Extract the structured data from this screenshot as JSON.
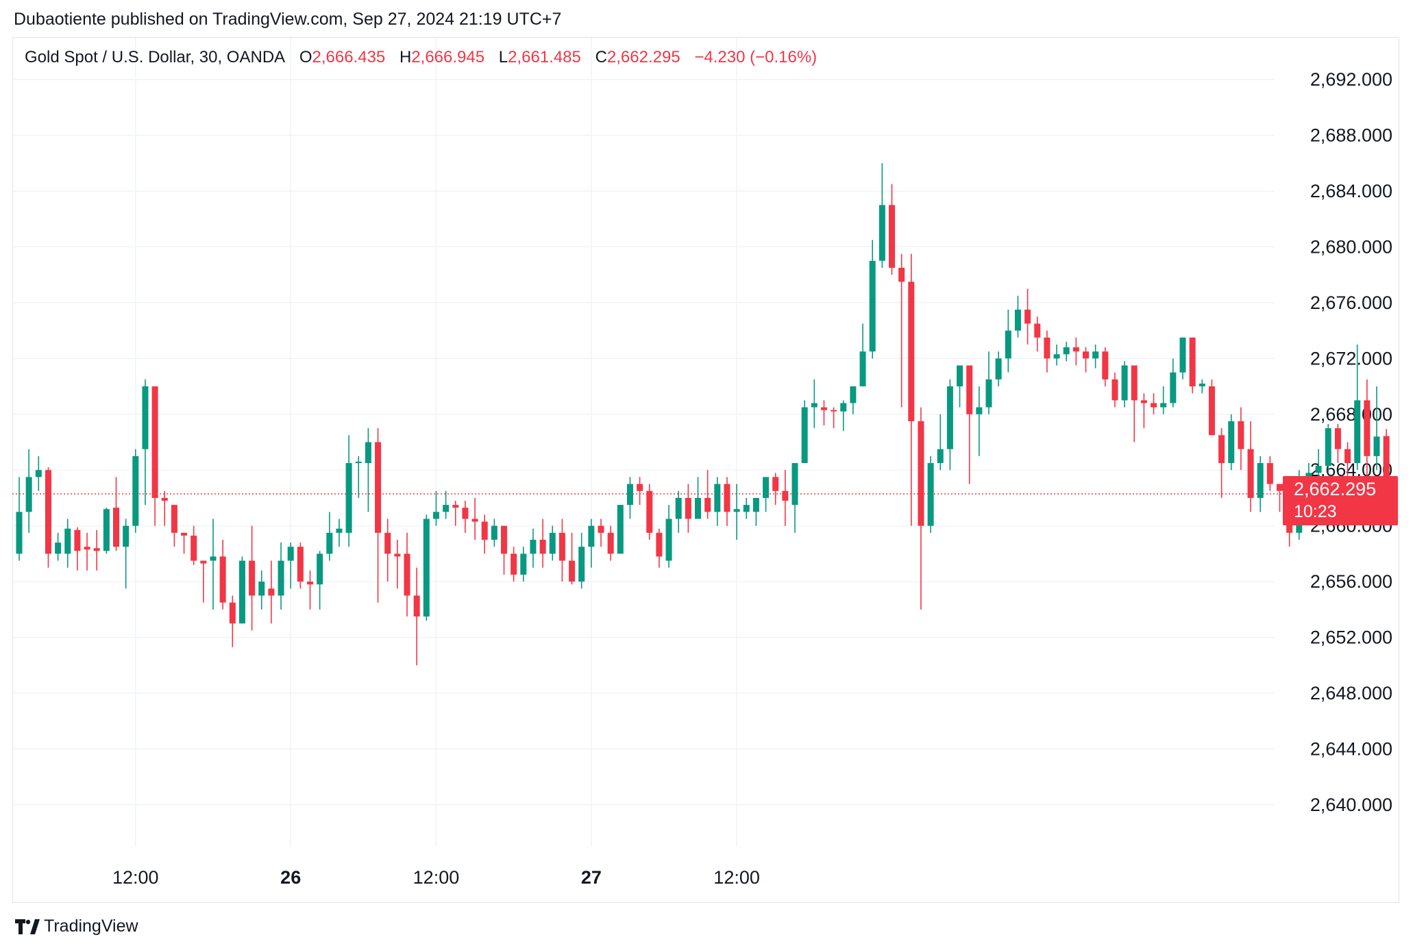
{
  "header": {
    "publisher_line": "Dubaotiente published on TradingView.com, Sep 27, 2024 21:19 UTC+7"
  },
  "legend": {
    "symbol": "Gold Spot / U.S. Dollar, 30, OANDA",
    "open_label": "O",
    "open": "2,666.435",
    "high_label": "H",
    "high": "2,666.945",
    "low_label": "L",
    "low": "2,661.485",
    "close_label": "C",
    "close": "2,662.295",
    "change": "−4.230 (−0.16%)"
  },
  "last_price": {
    "value": "2,662.295",
    "countdown": "10:23"
  },
  "footer": {
    "brand": "TradingView",
    "logo_icon": "tradingview-logo-icon"
  },
  "colors": {
    "up": "#089981",
    "down": "#f23645",
    "grid": "#f0f3fa",
    "text": "#131722"
  },
  "chart_data": {
    "type": "candlestick",
    "interval": "30",
    "y_ticks": [
      "2,692.000",
      "2,688.000",
      "2,684.000",
      "2,680.000",
      "2,676.000",
      "2,672.000",
      "2,668.000",
      "2,664.000",
      "2,660.000",
      "2,656.000",
      "2,652.000",
      "2,648.000",
      "2,644.000",
      "2,640.000"
    ],
    "ylim": [
      2637,
      2695
    ],
    "x_labels": [
      {
        "label": "12:00",
        "index": 12,
        "bold": false
      },
      {
        "label": "26",
        "index": 28,
        "bold": true
      },
      {
        "label": "12:00",
        "index": 43,
        "bold": false
      },
      {
        "label": "27",
        "index": 59,
        "bold": true
      },
      {
        "label": "12:00",
        "index": 74,
        "bold": false
      }
    ],
    "last_close": 2662.295,
    "candles": [
      [
        2658.0,
        2661.0,
        2657.5,
        2663.5
      ],
      [
        2661.0,
        2663.5,
        2659.5,
        2665.5
      ],
      [
        2663.5,
        2664.0,
        2662.5,
        2665.0
      ],
      [
        2664.0,
        2658.0,
        2657.0,
        2664.2
      ],
      [
        2658.0,
        2658.8,
        2657.5,
        2659.5
      ],
      [
        2658.0,
        2659.8,
        2657.0,
        2660.5
      ],
      [
        2659.7,
        2658.2,
        2656.8,
        2659.9
      ],
      [
        2658.5,
        2658.3,
        2656.8,
        2659.5
      ],
      [
        2658.4,
        2658.2,
        2656.8,
        2659.7
      ],
      [
        2658.2,
        2661.2,
        2658.0,
        2661.3
      ],
      [
        2661.3,
        2658.5,
        2658.2,
        2663.5
      ],
      [
        2658.5,
        2660.0,
        2655.5,
        2660.5
      ],
      [
        2660.0,
        2665.0,
        2659.5,
        2665.5
      ],
      [
        2665.5,
        2670.0,
        2661.5,
        2670.5
      ],
      [
        2670.0,
        2662.0,
        2660.0,
        2670.0
      ],
      [
        2662.0,
        2661.8,
        2660.0,
        2662.5
      ],
      [
        2661.5,
        2659.5,
        2658.5,
        2661.5
      ],
      [
        2659.5,
        2659.3,
        2658.0,
        2659.5
      ],
      [
        2659.3,
        2657.5,
        2657.2,
        2660.0
      ],
      [
        2657.5,
        2657.3,
        2654.5,
        2657.5
      ],
      [
        2657.5,
        2657.8,
        2654.0,
        2660.5
      ],
      [
        2657.8,
        2654.5,
        2654.0,
        2659.0
      ],
      [
        2654.5,
        2653.0,
        2651.3,
        2655.0
      ],
      [
        2653.0,
        2657.5,
        2653.0,
        2657.8
      ],
      [
        2657.5,
        2655.0,
        2652.5,
        2660.0
      ],
      [
        2655.0,
        2656.0,
        2654.0,
        2656.8
      ],
      [
        2655.5,
        2655.0,
        2653.0,
        2657.5
      ],
      [
        2655.0,
        2657.5,
        2654.0,
        2658.8
      ],
      [
        2657.5,
        2658.5,
        2655.5,
        2658.8
      ],
      [
        2658.5,
        2656.0,
        2655.5,
        2658.8
      ],
      [
        2656.0,
        2655.8,
        2654.0,
        2656.8
      ],
      [
        2655.8,
        2658.0,
        2654.0,
        2658.2
      ],
      [
        2658.0,
        2659.5,
        2657.5,
        2661.0
      ],
      [
        2659.5,
        2659.8,
        2658.5,
        2660.5
      ],
      [
        2659.5,
        2664.5,
        2658.5,
        2666.5
      ],
      [
        2664.5,
        2664.6,
        2662.0,
        2665.0
      ],
      [
        2664.5,
        2666.0,
        2661.0,
        2667.0
      ],
      [
        2666.0,
        2659.5,
        2654.5,
        2667.0
      ],
      [
        2659.5,
        2658.0,
        2656.0,
        2660.5
      ],
      [
        2658.0,
        2657.8,
        2655.5,
        2659.0
      ],
      [
        2658.0,
        2655.0,
        2653.5,
        2659.5
      ],
      [
        2655.0,
        2653.5,
        2650.0,
        2657.0
      ],
      [
        2653.5,
        2660.5,
        2653.2,
        2660.8
      ],
      [
        2660.5,
        2661.0,
        2660.0,
        2662.5
      ],
      [
        2661.0,
        2661.5,
        2660.5,
        2662.5
      ],
      [
        2661.5,
        2661.3,
        2660.0,
        2661.8
      ],
      [
        2661.3,
        2660.5,
        2659.5,
        2661.8
      ],
      [
        2660.5,
        2660.3,
        2659.0,
        2662.0
      ],
      [
        2660.3,
        2659.0,
        2658.0,
        2660.8
      ],
      [
        2659.0,
        2660.0,
        2658.5,
        2660.5
      ],
      [
        2660.0,
        2658.0,
        2656.5,
        2660.0
      ],
      [
        2658.0,
        2656.5,
        2656.0,
        2658.5
      ],
      [
        2656.5,
        2658.0,
        2656.0,
        2658.5
      ],
      [
        2658.0,
        2659.0,
        2657.0,
        2659.8
      ],
      [
        2659.0,
        2658.0,
        2657.0,
        2660.5
      ],
      [
        2658.0,
        2659.5,
        2657.5,
        2660.0
      ],
      [
        2659.5,
        2657.5,
        2656.0,
        2660.5
      ],
      [
        2657.5,
        2656.0,
        2655.8,
        2659.5
      ],
      [
        2656.0,
        2658.5,
        2655.5,
        2659.5
      ],
      [
        2658.5,
        2660.0,
        2657.0,
        2660.5
      ],
      [
        2660.0,
        2659.5,
        2658.5,
        2660.5
      ],
      [
        2659.5,
        2658.0,
        2657.5,
        2660.0
      ],
      [
        2658.0,
        2661.5,
        2658.0,
        2661.5
      ],
      [
        2661.5,
        2663.0,
        2660.5,
        2663.5
      ],
      [
        2663.0,
        2662.5,
        2661.5,
        2663.5
      ],
      [
        2662.5,
        2659.5,
        2659.0,
        2663.0
      ],
      [
        2659.5,
        2657.8,
        2657.0,
        2659.8
      ],
      [
        2657.5,
        2660.5,
        2657.0,
        2661.5
      ],
      [
        2660.5,
        2662.0,
        2659.5,
        2662.5
      ],
      [
        2662.0,
        2660.5,
        2659.5,
        2663.0
      ],
      [
        2660.5,
        2662.0,
        2660.5,
        2663.5
      ],
      [
        2662.0,
        2661.0,
        2660.5,
        2664.0
      ],
      [
        2661.0,
        2663.0,
        2660.0,
        2663.5
      ],
      [
        2663.0,
        2661.0,
        2660.0,
        2663.5
      ],
      [
        2661.0,
        2661.2,
        2659.0,
        2663.0
      ],
      [
        2661.0,
        2661.5,
        2660.5,
        2662.0
      ],
      [
        2661.0,
        2662.0,
        2660.0,
        2662.0
      ],
      [
        2662.0,
        2663.5,
        2661.0,
        2663.5
      ],
      [
        2663.5,
        2662.5,
        2661.5,
        2663.8
      ],
      [
        2662.5,
        2661.8,
        2660.0,
        2664.0
      ],
      [
        2661.5,
        2664.5,
        2659.5,
        2664.5
      ],
      [
        2664.5,
        2668.5,
        2664.5,
        2669.0
      ],
      [
        2668.5,
        2668.8,
        2667.0,
        2670.5
      ],
      [
        2668.5,
        2668.3,
        2667.2,
        2669.0
      ],
      [
        2668.3,
        2668.2,
        2667.0,
        2668.5
      ],
      [
        2668.2,
        2668.8,
        2666.8,
        2669.0
      ],
      [
        2668.8,
        2670.0,
        2668.0,
        2670.0
      ],
      [
        2670.0,
        2672.5,
        2670.0,
        2674.5
      ],
      [
        2672.5,
        2679.0,
        2672.0,
        2680.5
      ],
      [
        2679.0,
        2683.0,
        2678.5,
        2686.0
      ],
      [
        2683.0,
        2678.5,
        2678.0,
        2684.5
      ],
      [
        2678.5,
        2677.5,
        2668.5,
        2679.5
      ],
      [
        2677.5,
        2667.5,
        2660.0,
        2679.5
      ],
      [
        2667.5,
        2660.0,
        2654.0,
        2668.5
      ],
      [
        2660.0,
        2664.5,
        2659.5,
        2665.0
      ],
      [
        2664.5,
        2665.5,
        2664.0,
        2668.0
      ],
      [
        2665.5,
        2670.0,
        2664.0,
        2670.5
      ],
      [
        2670.0,
        2671.5,
        2668.5,
        2671.5
      ],
      [
        2671.5,
        2668.0,
        2663.0,
        2671.5
      ],
      [
        2668.0,
        2668.5,
        2665.0,
        2670.0
      ],
      [
        2668.5,
        2670.5,
        2668.0,
        2672.5
      ],
      [
        2670.5,
        2672.0,
        2670.0,
        2672.5
      ],
      [
        2672.0,
        2674.0,
        2671.0,
        2675.5
      ],
      [
        2674.0,
        2675.5,
        2673.5,
        2676.5
      ],
      [
        2675.5,
        2674.5,
        2673.0,
        2677.0
      ],
      [
        2674.5,
        2673.5,
        2672.5,
        2675.0
      ],
      [
        2673.5,
        2672.0,
        2671.0,
        2674.0
      ],
      [
        2672.0,
        2672.3,
        2671.5,
        2673.0
      ],
      [
        2672.3,
        2672.8,
        2671.8,
        2673.2
      ],
      [
        2672.8,
        2672.5,
        2671.5,
        2673.5
      ],
      [
        2672.5,
        2672.0,
        2671.0,
        2672.8
      ],
      [
        2672.0,
        2672.5,
        2671.3,
        2673.0
      ],
      [
        2672.5,
        2670.5,
        2670.0,
        2672.8
      ],
      [
        2670.5,
        2669.0,
        2668.5,
        2671.0
      ],
      [
        2669.0,
        2671.5,
        2668.5,
        2671.8
      ],
      [
        2671.5,
        2669.0,
        2666.0,
        2671.5
      ],
      [
        2669.0,
        2668.8,
        2667.0,
        2669.5
      ],
      [
        2668.8,
        2668.5,
        2668.0,
        2669.5
      ],
      [
        2668.5,
        2668.8,
        2668.0,
        2670.0
      ],
      [
        2668.8,
        2671.0,
        2668.5,
        2672.0
      ],
      [
        2671.0,
        2673.5,
        2670.5,
        2673.5
      ],
      [
        2673.5,
        2670.0,
        2669.5,
        2673.5
      ],
      [
        2670.0,
        2670.2,
        2669.5,
        2670.5
      ],
      [
        2670.0,
        2666.5,
        2666.5,
        2670.5
      ],
      [
        2666.5,
        2664.5,
        2662.0,
        2667.0
      ],
      [
        2664.5,
        2667.5,
        2664.0,
        2668.0
      ],
      [
        2667.5,
        2665.5,
        2664.0,
        2668.5
      ],
      [
        2665.5,
        2662.0,
        2661.0,
        2667.5
      ],
      [
        2662.0,
        2664.5,
        2661.0,
        2665.0
      ],
      [
        2664.5,
        2663.0,
        2662.5,
        2665.0
      ],
      [
        2663.0,
        2662.5,
        2661.0,
        2663.0
      ],
      [
        2662.0,
        2659.5,
        2658.5,
        2662.0
      ],
      [
        2659.5,
        2663.5,
        2659.0,
        2664.0
      ],
      [
        2663.5,
        2663.8,
        2661.8,
        2664.5
      ],
      [
        2663.8,
        2664.3,
        2663.5,
        2665.5
      ],
      [
        2664.3,
        2667.0,
        2663.8,
        2667.3
      ],
      [
        2667.0,
        2665.5,
        2664.5,
        2667.3
      ],
      [
        2665.5,
        2664.5,
        2662.5,
        2666.0
      ],
      [
        2664.5,
        2669.0,
        2664.0,
        2673.0
      ],
      [
        2669.0,
        2665.0,
        2662.0,
        2670.5
      ],
      [
        2665.0,
        2666.4,
        2664.0,
        2670.0
      ],
      [
        2666.435,
        2662.295,
        2661.485,
        2666.945
      ]
    ]
  }
}
